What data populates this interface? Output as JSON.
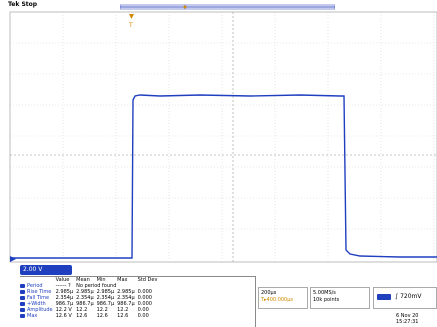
{
  "status": "Tek Stop",
  "channel": {
    "scale": "2.00 V"
  },
  "measurements": {
    "headers": [
      "",
      "Value",
      "Mean",
      "Min",
      "Max",
      "Std Dev"
    ],
    "rows": [
      [
        "Period",
        "------ ?",
        "No period found",
        "",
        "",
        ""
      ],
      [
        "Rise Time",
        "2.985µ",
        "2.985µ",
        "2.985µ",
        "2.985µ",
        "0.000"
      ],
      [
        "Fall Time",
        "2.354µ",
        "2.354µ",
        "2.354µ",
        "2.354µ",
        "0.000"
      ],
      [
        "+Width",
        "986.7µ",
        "986.7µ",
        "986.7µ",
        "986.7µ",
        "0.000"
      ],
      [
        "Amplitude",
        "12.2 V",
        "12.2",
        "12.2",
        "12.2",
        "0.00"
      ],
      [
        "Max",
        "12.6 V",
        "12.6",
        "12.6",
        "12.6",
        "0.00"
      ]
    ]
  },
  "timebase": {
    "scale": "200µs",
    "position": "T▸400.000µs"
  },
  "acquisition": {
    "rate": "5.00MS/s",
    "points": "10k points"
  },
  "trigger": {
    "label": "∫",
    "level": "720mV"
  },
  "datetime": {
    "date": "6 Nov 20",
    "time": "15:27:31"
  },
  "colors": {
    "trace": "#1f3fbf",
    "grid": "#c8c8c8",
    "accent": "#d08a00"
  }
}
